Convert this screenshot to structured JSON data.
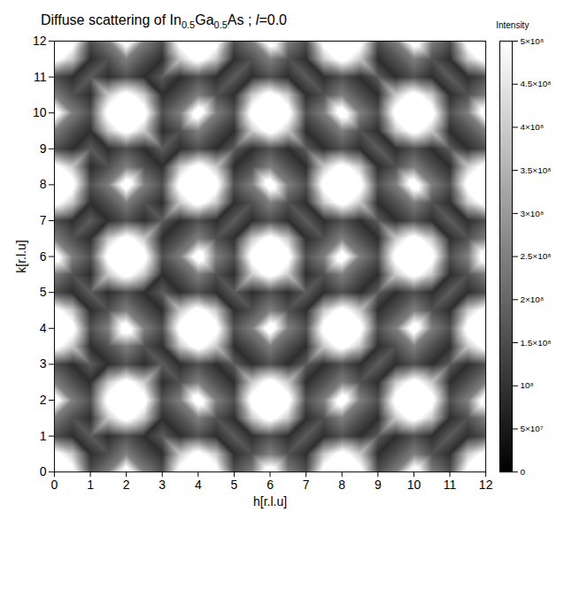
{
  "chart_data": {
    "type": "heatmap",
    "title": "Diffuse scattering of In0.5Ga0.5As ; l=0.0",
    "x_label": "h[r.l.u]",
    "y_label": "k[r.l.u]",
    "x": [
      0,
      0.5,
      1,
      1.5,
      2,
      2.5,
      3,
      3.5,
      4,
      4.5,
      5,
      5.5,
      6,
      6.5,
      7,
      7.5,
      8,
      8.5,
      9,
      9.5,
      10,
      10.5,
      11,
      11.5,
      12
    ],
    "y": [
      0,
      0.5,
      1,
      1.5,
      2,
      2.5,
      3,
      3.5,
      4,
      4.5,
      5,
      5.5,
      6,
      6.5,
      7,
      7.5,
      8,
      8.5,
      9,
      9.5,
      10,
      10.5,
      11,
      11.5,
      12
    ],
    "values": [
      [
        700000000.0,
        550000000.0,
        160000000.0,
        250000000.0,
        600000000.0,
        250000000.0,
        160000000.0,
        550000000.0,
        700000000.0,
        550000000.0,
        160000000.0,
        250000000.0,
        600000000.0,
        250000000.0,
        160000000.0,
        550000000.0,
        700000000.0,
        550000000.0,
        160000000.0,
        250000000.0,
        600000000.0,
        250000000.0,
        160000000.0,
        550000000.0,
        700000000.0
      ],
      [
        550000000.0,
        400000000.0,
        90000000.0,
        160000000.0,
        250000000.0,
        160000000.0,
        90000000.0,
        400000000.0,
        550000000.0,
        400000000.0,
        90000000.0,
        160000000.0,
        250000000.0,
        160000000.0,
        90000000.0,
        400000000.0,
        550000000.0,
        400000000.0,
        90000000.0,
        160000000.0,
        250000000.0,
        160000000.0,
        90000000.0,
        400000000.0,
        550000000.0
      ],
      [
        160000000.0,
        90000000.0,
        180000000.0,
        90000000.0,
        160000000.0,
        90000000.0,
        180000000.0,
        90000000.0,
        160000000.0,
        90000000.0,
        180000000.0,
        90000000.0,
        160000000.0,
        90000000.0,
        180000000.0,
        90000000.0,
        160000000.0,
        90000000.0,
        180000000.0,
        90000000.0,
        160000000.0,
        90000000.0,
        180000000.0,
        90000000.0,
        160000000.0
      ],
      [
        250000000.0,
        160000000.0,
        90000000.0,
        400000000.0,
        550000000.0,
        400000000.0,
        90000000.0,
        160000000.0,
        250000000.0,
        160000000.0,
        90000000.0,
        400000000.0,
        550000000.0,
        400000000.0,
        90000000.0,
        160000000.0,
        250000000.0,
        160000000.0,
        90000000.0,
        400000000.0,
        550000000.0,
        400000000.0,
        90000000.0,
        160000000.0,
        250000000.0
      ],
      [
        600000000.0,
        250000000.0,
        160000000.0,
        550000000.0,
        700000000.0,
        550000000.0,
        160000000.0,
        250000000.0,
        600000000.0,
        250000000.0,
        160000000.0,
        550000000.0,
        700000000.0,
        550000000.0,
        160000000.0,
        250000000.0,
        600000000.0,
        250000000.0,
        160000000.0,
        550000000.0,
        700000000.0,
        550000000.0,
        160000000.0,
        250000000.0,
        600000000.0
      ],
      [
        250000000.0,
        160000000.0,
        90000000.0,
        400000000.0,
        550000000.0,
        400000000.0,
        90000000.0,
        160000000.0,
        250000000.0,
        160000000.0,
        90000000.0,
        400000000.0,
        550000000.0,
        400000000.0,
        90000000.0,
        160000000.0,
        250000000.0,
        160000000.0,
        90000000.0,
        400000000.0,
        550000000.0,
        400000000.0,
        90000000.0,
        160000000.0,
        250000000.0
      ],
      [
        160000000.0,
        90000000.0,
        180000000.0,
        90000000.0,
        160000000.0,
        90000000.0,
        180000000.0,
        90000000.0,
        160000000.0,
        90000000.0,
        180000000.0,
        90000000.0,
        160000000.0,
        90000000.0,
        180000000.0,
        90000000.0,
        160000000.0,
        90000000.0,
        180000000.0,
        90000000.0,
        160000000.0,
        90000000.0,
        180000000.0,
        90000000.0,
        160000000.0
      ],
      [
        550000000.0,
        400000000.0,
        90000000.0,
        160000000.0,
        250000000.0,
        160000000.0,
        90000000.0,
        400000000.0,
        550000000.0,
        400000000.0,
        90000000.0,
        160000000.0,
        250000000.0,
        160000000.0,
        90000000.0,
        400000000.0,
        550000000.0,
        400000000.0,
        90000000.0,
        160000000.0,
        250000000.0,
        160000000.0,
        90000000.0,
        400000000.0,
        550000000.0
      ],
      [
        700000000.0,
        550000000.0,
        160000000.0,
        250000000.0,
        600000000.0,
        250000000.0,
        160000000.0,
        550000000.0,
        700000000.0,
        550000000.0,
        160000000.0,
        250000000.0,
        600000000.0,
        250000000.0,
        160000000.0,
        550000000.0,
        700000000.0,
        550000000.0,
        160000000.0,
        250000000.0,
        600000000.0,
        250000000.0,
        160000000.0,
        550000000.0,
        700000000.0
      ],
      [
        550000000.0,
        400000000.0,
        90000000.0,
        160000000.0,
        250000000.0,
        160000000.0,
        90000000.0,
        400000000.0,
        550000000.0,
        400000000.0,
        90000000.0,
        160000000.0,
        250000000.0,
        160000000.0,
        90000000.0,
        400000000.0,
        550000000.0,
        400000000.0,
        90000000.0,
        160000000.0,
        250000000.0,
        160000000.0,
        90000000.0,
        400000000.0,
        550000000.0
      ],
      [
        160000000.0,
        90000000.0,
        180000000.0,
        90000000.0,
        160000000.0,
        90000000.0,
        180000000.0,
        90000000.0,
        160000000.0,
        90000000.0,
        180000000.0,
        90000000.0,
        160000000.0,
        90000000.0,
        180000000.0,
        90000000.0,
        160000000.0,
        90000000.0,
        180000000.0,
        90000000.0,
        160000000.0,
        90000000.0,
        180000000.0,
        90000000.0,
        160000000.0
      ],
      [
        250000000.0,
        160000000.0,
        90000000.0,
        400000000.0,
        550000000.0,
        400000000.0,
        90000000.0,
        160000000.0,
        250000000.0,
        160000000.0,
        90000000.0,
        400000000.0,
        550000000.0,
        400000000.0,
        90000000.0,
        160000000.0,
        250000000.0,
        160000000.0,
        90000000.0,
        400000000.0,
        550000000.0,
        400000000.0,
        90000000.0,
        160000000.0,
        250000000.0
      ],
      [
        600000000.0,
        250000000.0,
        160000000.0,
        550000000.0,
        700000000.0,
        550000000.0,
        160000000.0,
        250000000.0,
        600000000.0,
        250000000.0,
        160000000.0,
        550000000.0,
        700000000.0,
        550000000.0,
        160000000.0,
        250000000.0,
        600000000.0,
        250000000.0,
        160000000.0,
        550000000.0,
        700000000.0,
        550000000.0,
        160000000.0,
        250000000.0,
        600000000.0
      ],
      [
        250000000.0,
        160000000.0,
        90000000.0,
        400000000.0,
        550000000.0,
        400000000.0,
        90000000.0,
        160000000.0,
        250000000.0,
        160000000.0,
        90000000.0,
        400000000.0,
        550000000.0,
        400000000.0,
        90000000.0,
        160000000.0,
        250000000.0,
        160000000.0,
        90000000.0,
        400000000.0,
        550000000.0,
        400000000.0,
        90000000.0,
        160000000.0,
        250000000.0
      ],
      [
        160000000.0,
        90000000.0,
        180000000.0,
        90000000.0,
        160000000.0,
        90000000.0,
        180000000.0,
        90000000.0,
        160000000.0,
        90000000.0,
        180000000.0,
        90000000.0,
        160000000.0,
        90000000.0,
        180000000.0,
        90000000.0,
        160000000.0,
        90000000.0,
        180000000.0,
        90000000.0,
        160000000.0,
        90000000.0,
        180000000.0,
        90000000.0,
        160000000.0
      ],
      [
        550000000.0,
        400000000.0,
        90000000.0,
        160000000.0,
        250000000.0,
        160000000.0,
        90000000.0,
        400000000.0,
        550000000.0,
        400000000.0,
        90000000.0,
        160000000.0,
        250000000.0,
        160000000.0,
        90000000.0,
        400000000.0,
        550000000.0,
        400000000.0,
        90000000.0,
        160000000.0,
        250000000.0,
        160000000.0,
        90000000.0,
        400000000.0,
        550000000.0
      ],
      [
        700000000.0,
        550000000.0,
        160000000.0,
        250000000.0,
        600000000.0,
        250000000.0,
        160000000.0,
        550000000.0,
        700000000.0,
        550000000.0,
        160000000.0,
        250000000.0,
        600000000.0,
        250000000.0,
        160000000.0,
        550000000.0,
        700000000.0,
        550000000.0,
        160000000.0,
        250000000.0,
        600000000.0,
        250000000.0,
        160000000.0,
        550000000.0,
        700000000.0
      ],
      [
        550000000.0,
        400000000.0,
        90000000.0,
        160000000.0,
        250000000.0,
        160000000.0,
        90000000.0,
        400000000.0,
        550000000.0,
        400000000.0,
        90000000.0,
        160000000.0,
        250000000.0,
        160000000.0,
        90000000.0,
        400000000.0,
        550000000.0,
        400000000.0,
        90000000.0,
        160000000.0,
        250000000.0,
        160000000.0,
        90000000.0,
        400000000.0,
        550000000.0
      ],
      [
        160000000.0,
        90000000.0,
        180000000.0,
        90000000.0,
        160000000.0,
        90000000.0,
        180000000.0,
        90000000.0,
        160000000.0,
        90000000.0,
        180000000.0,
        90000000.0,
        160000000.0,
        90000000.0,
        180000000.0,
        90000000.0,
        160000000.0,
        90000000.0,
        180000000.0,
        90000000.0,
        160000000.0,
        90000000.0,
        180000000.0,
        90000000.0,
        160000000.0
      ],
      [
        250000000.0,
        160000000.0,
        90000000.0,
        400000000.0,
        550000000.0,
        400000000.0,
        90000000.0,
        160000000.0,
        250000000.0,
        160000000.0,
        90000000.0,
        400000000.0,
        550000000.0,
        400000000.0,
        90000000.0,
        160000000.0,
        250000000.0,
        160000000.0,
        90000000.0,
        400000000.0,
        550000000.0,
        400000000.0,
        90000000.0,
        160000000.0,
        250000000.0
      ],
      [
        600000000.0,
        250000000.0,
        160000000.0,
        550000000.0,
        700000000.0,
        550000000.0,
        160000000.0,
        250000000.0,
        600000000.0,
        250000000.0,
        160000000.0,
        550000000.0,
        700000000.0,
        550000000.0,
        160000000.0,
        250000000.0,
        600000000.0,
        250000000.0,
        160000000.0,
        550000000.0,
        700000000.0,
        550000000.0,
        160000000.0,
        250000000.0,
        600000000.0
      ],
      [
        250000000.0,
        160000000.0,
        90000000.0,
        400000000.0,
        550000000.0,
        400000000.0,
        90000000.0,
        160000000.0,
        250000000.0,
        160000000.0,
        90000000.0,
        400000000.0,
        550000000.0,
        400000000.0,
        90000000.0,
        160000000.0,
        250000000.0,
        160000000.0,
        90000000.0,
        400000000.0,
        550000000.0,
        400000000.0,
        90000000.0,
        160000000.0,
        250000000.0
      ],
      [
        160000000.0,
        90000000.0,
        180000000.0,
        90000000.0,
        160000000.0,
        90000000.0,
        180000000.0,
        90000000.0,
        160000000.0,
        90000000.0,
        180000000.0,
        90000000.0,
        160000000.0,
        90000000.0,
        180000000.0,
        90000000.0,
        160000000.0,
        90000000.0,
        180000000.0,
        90000000.0,
        160000000.0,
        90000000.0,
        180000000.0,
        90000000.0,
        160000000.0
      ],
      [
        550000000.0,
        400000000.0,
        90000000.0,
        160000000.0,
        250000000.0,
        160000000.0,
        90000000.0,
        400000000.0,
        550000000.0,
        400000000.0,
        90000000.0,
        160000000.0,
        250000000.0,
        160000000.0,
        90000000.0,
        400000000.0,
        550000000.0,
        400000000.0,
        90000000.0,
        160000000.0,
        250000000.0,
        160000000.0,
        90000000.0,
        400000000.0,
        550000000.0
      ],
      [
        700000000.0,
        550000000.0,
        160000000.0,
        250000000.0,
        600000000.0,
        250000000.0,
        160000000.0,
        550000000.0,
        700000000.0,
        550000000.0,
        160000000.0,
        250000000.0,
        600000000.0,
        250000000.0,
        160000000.0,
        550000000.0,
        700000000.0,
        550000000.0,
        160000000.0,
        250000000.0,
        600000000.0,
        250000000.0,
        160000000.0,
        550000000.0,
        700000000.0
      ]
    ],
    "xlim": [
      0,
      12
    ],
    "ylim": [
      0,
      12
    ],
    "xticks": [
      0,
      1,
      2,
      3,
      4,
      5,
      6,
      7,
      8,
      9,
      10,
      11,
      12
    ],
    "yticks": [
      0,
      1,
      2,
      3,
      4,
      5,
      6,
      7,
      8,
      9,
      10,
      11,
      12
    ],
    "colorbar_label": "Intensity",
    "colorbar_lim": [
      0,
      500000000.0
    ],
    "colorbar_ticks": [
      0,
      {
        "value": 50000000.0,
        "label": "5×10⁷"
      },
      {
        "value": 100000000.0,
        "label": "10⁸"
      },
      {
        "value": 150000000.0,
        "label": "1.5×10⁸"
      },
      {
        "value": 200000000.0,
        "label": "2×10⁸"
      },
      {
        "value": 250000000.0,
        "label": "2.5×10⁸"
      },
      {
        "value": 300000000.0,
        "label": "3×10⁸"
      },
      {
        "value": 350000000.0,
        "label": "3.5×10⁸"
      },
      {
        "value": 400000000.0,
        "label": "4×10⁸"
      },
      {
        "value": 450000000.0,
        "label": "4.5×10⁸"
      },
      {
        "value": 500000000.0,
        "label": "5×10⁸"
      }
    ],
    "colors": [
      "#000000",
      "#ffffff"
    ]
  }
}
